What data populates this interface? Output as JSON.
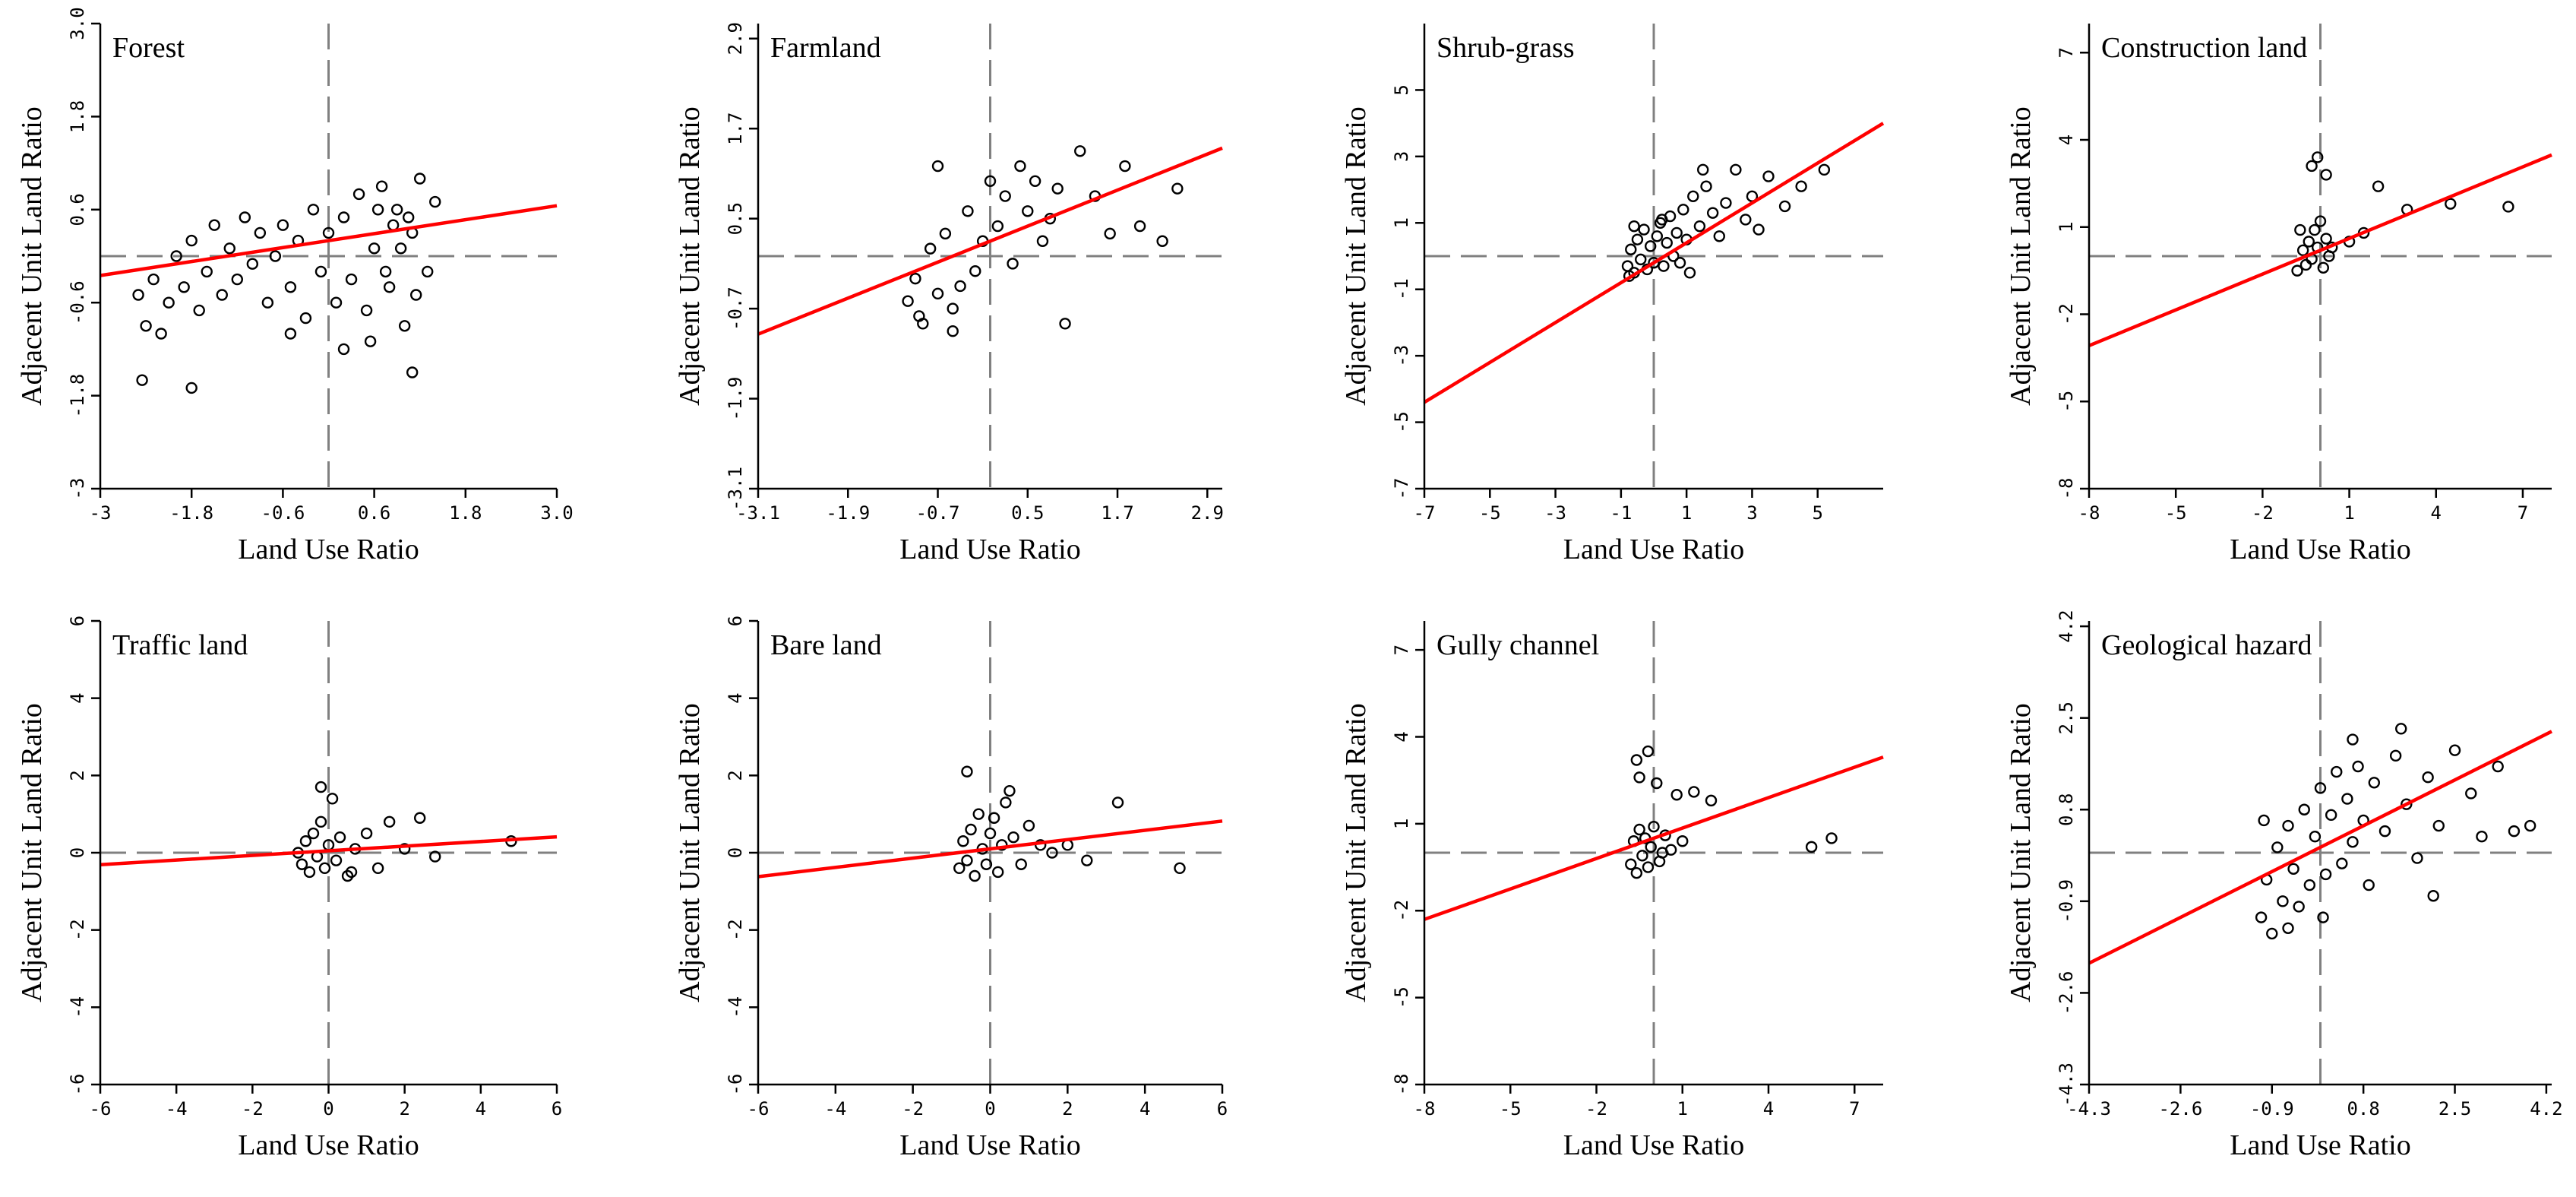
{
  "figure": {
    "colors": {
      "regression": "#ff0000",
      "axis": "#000000",
      "dash": "#808080",
      "point": "#000000",
      "background": "#ffffff"
    }
  },
  "chart_data": [
    {
      "type": "scatter",
      "title": "Forest",
      "xlabel": "Land Use Ratio",
      "ylabel": "Adjacent Unit Land Ratio",
      "xlim": [
        -3,
        3
      ],
      "ylim": [
        -3,
        3
      ],
      "xticks": [
        -3,
        -1.8,
        -0.6,
        0.6,
        1.8,
        3
      ],
      "xtick_labels": [
        "-3",
        "-1.8",
        "-0.6",
        "0.6",
        "1.8",
        "3.0"
      ],
      "yticks": [
        -3,
        -1.8,
        -0.6,
        0.6,
        1.8,
        3
      ],
      "ytick_labels": [
        "-3",
        "-1.8",
        "-0.6",
        "0.6",
        "1.8",
        "3.0"
      ],
      "regression": {
        "slope": 0.15,
        "intercept": 0.2
      },
      "points": [
        [
          -2.5,
          -0.5
        ],
        [
          -2.4,
          -0.9
        ],
        [
          -2.3,
          -0.3
        ],
        [
          -2.2,
          -1.0
        ],
        [
          -2.1,
          -0.6
        ],
        [
          -2.0,
          0.0
        ],
        [
          -1.9,
          -0.4
        ],
        [
          -1.8,
          0.2
        ],
        [
          -1.7,
          -0.7
        ],
        [
          -1.6,
          -0.2
        ],
        [
          -1.5,
          0.4
        ],
        [
          -1.4,
          -0.5
        ],
        [
          -1.3,
          0.1
        ],
        [
          -1.2,
          -0.3
        ],
        [
          -1.1,
          0.5
        ],
        [
          -1.0,
          -0.1
        ],
        [
          -0.9,
          0.3
        ],
        [
          -0.8,
          -0.6
        ],
        [
          -0.7,
          0.0
        ],
        [
          -0.6,
          0.4
        ],
        [
          -0.5,
          -0.4
        ],
        [
          -0.4,
          0.2
        ],
        [
          -0.3,
          -0.8
        ],
        [
          -0.2,
          0.6
        ],
        [
          -0.1,
          -0.2
        ],
        [
          0.0,
          0.3
        ],
        [
          0.1,
          -0.6
        ],
        [
          0.2,
          0.5
        ],
        [
          0.3,
          -0.3
        ],
        [
          0.4,
          0.8
        ],
        [
          0.5,
          -0.7
        ],
        [
          0.6,
          0.1
        ],
        [
          0.7,
          0.9
        ],
        [
          0.8,
          -0.4
        ],
        [
          0.9,
          0.6
        ],
        [
          1.0,
          -0.9
        ],
        [
          1.1,
          0.3
        ],
        [
          1.2,
          1.0
        ],
        [
          1.3,
          -0.2
        ],
        [
          1.4,
          0.7
        ],
        [
          0.75,
          -0.2
        ],
        [
          0.85,
          0.4
        ],
        [
          0.95,
          0.1
        ],
        [
          1.05,
          0.5
        ],
        [
          1.15,
          -0.5
        ],
        [
          0.65,
          0.6
        ],
        [
          -2.45,
          -1.6
        ],
        [
          -1.8,
          -1.7
        ],
        [
          0.2,
          -1.2
        ],
        [
          1.1,
          -1.5
        ],
        [
          -0.5,
          -1.0
        ],
        [
          0.55,
          -1.1
        ]
      ]
    },
    {
      "type": "scatter",
      "title": "Farmland",
      "xlabel": "Land Use Ratio",
      "ylabel": "Adjacent Unit Land Ratio",
      "xlim": [
        -3.1,
        3.1
      ],
      "ylim": [
        -3.1,
        3.1
      ],
      "xticks": [
        -3.1,
        -1.9,
        -0.7,
        0.5,
        1.7,
        2.9
      ],
      "xtick_labels": [
        "-3.1",
        "-1.9",
        "-0.7",
        "0.5",
        "1.7",
        "2.9"
      ],
      "yticks": [
        -3.1,
        -1.9,
        -0.7,
        0.5,
        1.7,
        2.9
      ],
      "ytick_labels": [
        "-3.1",
        "-1.9",
        "-0.7",
        "0.5",
        "1.7",
        "2.9"
      ],
      "regression": {
        "slope": 0.4,
        "intercept": 0.2
      },
      "points": [
        [
          -1.1,
          -0.6
        ],
        [
          -1.0,
          -0.3
        ],
        [
          -0.9,
          -0.9
        ],
        [
          -0.8,
          0.1
        ],
        [
          -0.7,
          -0.5
        ],
        [
          -0.6,
          0.3
        ],
        [
          -0.5,
          -0.7
        ],
        [
          -0.4,
          -0.4
        ],
        [
          -0.3,
          0.6
        ],
        [
          -0.2,
          -0.2
        ],
        [
          -0.1,
          0.2
        ],
        [
          0.0,
          1.0
        ],
        [
          0.1,
          0.4
        ],
        [
          0.2,
          0.8
        ],
        [
          0.3,
          -0.1
        ],
        [
          0.4,
          1.2
        ],
        [
          0.5,
          0.6
        ],
        [
          0.6,
          1.0
        ],
        [
          0.7,
          0.2
        ],
        [
          0.8,
          0.5
        ],
        [
          1.0,
          -0.9
        ],
        [
          1.2,
          1.4
        ],
        [
          1.4,
          0.8
        ],
        [
          1.6,
          0.3
        ],
        [
          1.8,
          1.2
        ],
        [
          2.0,
          0.4
        ],
        [
          2.3,
          0.2
        ],
        [
          2.5,
          0.9
        ],
        [
          -0.7,
          1.2
        ],
        [
          -0.95,
          -0.8
        ],
        [
          -0.5,
          -1.0
        ],
        [
          0.9,
          0.9
        ]
      ]
    },
    {
      "type": "scatter",
      "title": "Shrub-grass",
      "xlabel": "Land Use Ratio",
      "ylabel": "Adjacent Unit Land Ratio",
      "xlim": [
        -7,
        7
      ],
      "ylim": [
        -7,
        7
      ],
      "xticks": [
        -7,
        -5,
        -3,
        -1,
        1,
        3,
        5
      ],
      "xtick_labels": [
        "-7",
        "-5",
        "-3",
        "-1",
        "1",
        "3",
        "5"
      ],
      "yticks": [
        -7,
        -5,
        -3,
        -1,
        1,
        3,
        5
      ],
      "ytick_labels": [
        "-7",
        "-5",
        "-3",
        "-1",
        "1",
        "3",
        "5"
      ],
      "regression": {
        "slope": 0.6,
        "intercept": -0.2
      },
      "points": [
        [
          -0.8,
          -0.3
        ],
        [
          -0.7,
          0.2
        ],
        [
          -0.6,
          -0.5
        ],
        [
          -0.5,
          0.5
        ],
        [
          -0.4,
          -0.1
        ],
        [
          -0.3,
          0.8
        ],
        [
          -0.2,
          -0.4
        ],
        [
          -0.1,
          0.3
        ],
        [
          0.0,
          -0.2
        ],
        [
          0.1,
          0.6
        ],
        [
          0.2,
          1.0
        ],
        [
          0.3,
          -0.3
        ],
        [
          0.4,
          0.4
        ],
        [
          0.5,
          1.2
        ],
        [
          0.6,
          0.0
        ],
        [
          0.7,
          0.7
        ],
        [
          0.8,
          -0.2
        ],
        [
          0.9,
          1.4
        ],
        [
          1.0,
          0.5
        ],
        [
          1.2,
          1.8
        ],
        [
          1.4,
          0.9
        ],
        [
          1.6,
          2.1
        ],
        [
          1.8,
          1.3
        ],
        [
          2.0,
          0.6
        ],
        [
          2.2,
          1.6
        ],
        [
          2.5,
          2.6
        ],
        [
          2.8,
          1.1
        ],
        [
          3.0,
          1.8
        ],
        [
          3.2,
          0.8
        ],
        [
          3.5,
          2.4
        ],
        [
          4.0,
          1.5
        ],
        [
          4.5,
          2.1
        ],
        [
          5.2,
          2.6
        ],
        [
          -0.6,
          0.9
        ],
        [
          -0.75,
          -0.6
        ],
        [
          0.25,
          1.1
        ],
        [
          1.1,
          -0.5
        ],
        [
          1.5,
          2.6
        ]
      ]
    },
    {
      "type": "scatter",
      "title": "Construction land",
      "xlabel": "Land Use Ratio",
      "ylabel": "Adjacent Unit Land Ratio",
      "xlim": [
        -8,
        8
      ],
      "ylim": [
        -8,
        8
      ],
      "xticks": [
        -8,
        -5,
        -2,
        1,
        4,
        7
      ],
      "xtick_labels": [
        "-8",
        "-5",
        "-2",
        "1",
        "4",
        "7"
      ],
      "yticks": [
        -8,
        -5,
        -2,
        1,
        4,
        7
      ],
      "ytick_labels": [
        "-8",
        "-5",
        "-2",
        "1",
        "4",
        "7"
      ],
      "regression": {
        "slope": 0.41,
        "intercept": 0.2
      },
      "points": [
        [
          -0.8,
          -0.5
        ],
        [
          -0.6,
          0.2
        ],
        [
          -0.5,
          -0.3
        ],
        [
          -0.4,
          0.5
        ],
        [
          -0.3,
          -0.1
        ],
        [
          -0.2,
          0.9
        ],
        [
          -0.1,
          0.3
        ],
        [
          0.0,
          1.2
        ],
        [
          0.1,
          -0.4
        ],
        [
          0.2,
          0.6
        ],
        [
          0.3,
          0.0
        ],
        [
          -0.3,
          3.1
        ],
        [
          -0.1,
          3.4
        ],
        [
          0.2,
          2.8
        ],
        [
          1.0,
          0.5
        ],
        [
          1.5,
          0.8
        ],
        [
          2.0,
          2.4
        ],
        [
          3.0,
          1.6
        ],
        [
          4.5,
          1.8
        ],
        [
          6.5,
          1.7
        ],
        [
          -0.7,
          0.9
        ],
        [
          0.4,
          0.3
        ]
      ]
    },
    {
      "type": "scatter",
      "title": "Traffic land",
      "xlabel": "Land Use Ratio",
      "ylabel": "Adjacent Unit Land Ratio",
      "xlim": [
        -6,
        6
      ],
      "ylim": [
        -6,
        6
      ],
      "xticks": [
        -6,
        -4,
        -2,
        0,
        2,
        4,
        6
      ],
      "xtick_labels": [
        "-6",
        "-4",
        "-2",
        "0",
        "2",
        "4",
        "6"
      ],
      "yticks": [
        -6,
        -4,
        -2,
        0,
        2,
        4,
        6
      ],
      "ytick_labels": [
        "-6",
        "-4",
        "-2",
        "0",
        "2",
        "4",
        "6"
      ],
      "regression": {
        "slope": 0.06,
        "intercept": 0.05
      },
      "points": [
        [
          -0.8,
          0.0
        ],
        [
          -0.7,
          -0.3
        ],
        [
          -0.6,
          0.3
        ],
        [
          -0.5,
          -0.5
        ],
        [
          -0.4,
          0.5
        ],
        [
          -0.3,
          -0.1
        ],
        [
          -0.2,
          0.8
        ],
        [
          -0.1,
          -0.4
        ],
        [
          0.0,
          0.2
        ],
        [
          0.1,
          1.4
        ],
        [
          0.2,
          -0.2
        ],
        [
          0.3,
          0.4
        ],
        [
          0.5,
          -0.6
        ],
        [
          0.7,
          0.1
        ],
        [
          1.0,
          0.5
        ],
        [
          1.3,
          -0.4
        ],
        [
          1.6,
          0.8
        ],
        [
          2.0,
          0.1
        ],
        [
          2.4,
          0.9
        ],
        [
          2.8,
          -0.1
        ],
        [
          4.8,
          0.3
        ],
        [
          -0.2,
          1.7
        ],
        [
          0.6,
          -0.5
        ]
      ]
    },
    {
      "type": "scatter",
      "title": "Bare land",
      "xlabel": "Land Use Ratio",
      "ylabel": "Adjacent Unit Land Ratio",
      "xlim": [
        -6,
        6
      ],
      "ylim": [
        -6,
        6
      ],
      "xticks": [
        -6,
        -4,
        -2,
        0,
        2,
        4,
        6
      ],
      "xtick_labels": [
        "-6",
        "-4",
        "-2",
        "0",
        "2",
        "4",
        "6"
      ],
      "yticks": [
        -6,
        -4,
        -2,
        0,
        2,
        4,
        6
      ],
      "ytick_labels": [
        "-6",
        "-4",
        "-2",
        "0",
        "2",
        "4",
        "6"
      ],
      "regression": {
        "slope": 0.12,
        "intercept": 0.1
      },
      "points": [
        [
          -0.8,
          -0.4
        ],
        [
          -0.7,
          0.3
        ],
        [
          -0.6,
          -0.2
        ],
        [
          -0.5,
          0.6
        ],
        [
          -0.4,
          -0.6
        ],
        [
          -0.3,
          1.0
        ],
        [
          -0.2,
          0.1
        ],
        [
          -0.1,
          -0.3
        ],
        [
          0.0,
          0.5
        ],
        [
          0.1,
          0.9
        ],
        [
          0.2,
          -0.5
        ],
        [
          0.3,
          0.2
        ],
        [
          0.4,
          1.3
        ],
        [
          0.6,
          0.4
        ],
        [
          0.8,
          -0.3
        ],
        [
          1.0,
          0.7
        ],
        [
          1.3,
          0.2
        ],
        [
          1.6,
          0.0
        ],
        [
          2.0,
          0.2
        ],
        [
          2.5,
          -0.2
        ],
        [
          3.3,
          1.3
        ],
        [
          4.9,
          -0.4
        ],
        [
          -0.6,
          2.1
        ],
        [
          0.5,
          1.6
        ]
      ]
    },
    {
      "type": "scatter",
      "title": "Gully channel",
      "xlabel": "Land Use Ratio",
      "ylabel": "Adjacent Unit Land Ratio",
      "xlim": [
        -8,
        8
      ],
      "ylim": [
        -8,
        8
      ],
      "xticks": [
        -8,
        -5,
        -2,
        1,
        4,
        7
      ],
      "xtick_labels": [
        "-8",
        "-5",
        "-2",
        "1",
        "4",
        "7"
      ],
      "yticks": [
        -8,
        -5,
        -2,
        1,
        4,
        7
      ],
      "ytick_labels": [
        "-8",
        "-5",
        "-2",
        "1",
        "4",
        "7"
      ],
      "regression": {
        "slope": 0.35,
        "intercept": 0.5
      },
      "points": [
        [
          -0.8,
          -0.4
        ],
        [
          -0.7,
          0.4
        ],
        [
          -0.6,
          -0.7
        ],
        [
          -0.5,
          0.8
        ],
        [
          -0.4,
          -0.1
        ],
        [
          -0.3,
          0.5
        ],
        [
          -0.2,
          -0.5
        ],
        [
          -0.1,
          0.2
        ],
        [
          0.0,
          0.9
        ],
        [
          0.2,
          -0.3
        ],
        [
          0.4,
          0.6
        ],
        [
          0.6,
          0.1
        ],
        [
          1.0,
          0.4
        ],
        [
          -0.6,
          3.2
        ],
        [
          -0.2,
          3.5
        ],
        [
          0.1,
          2.4
        ],
        [
          0.8,
          2.0
        ],
        [
          1.4,
          2.1
        ],
        [
          2.0,
          1.8
        ],
        [
          5.5,
          0.2
        ],
        [
          6.2,
          0.5
        ],
        [
          -0.5,
          2.6
        ],
        [
          0.3,
          0.0
        ]
      ]
    },
    {
      "type": "scatter",
      "title": "Geological hazard",
      "xlabel": "Land Use Ratio",
      "ylabel": "Adjacent Unit Land Ratio",
      "xlim": [
        -4.3,
        4.3
      ],
      "ylim": [
        -4.3,
        4.3
      ],
      "xticks": [
        -4.3,
        -2.6,
        -0.9,
        0.8,
        2.5,
        4.2
      ],
      "xtick_labels": [
        "-4.3",
        "-2.6",
        "-0.9",
        "0.8",
        "2.5",
        "4.2"
      ],
      "yticks": [
        -4.3,
        -2.6,
        -0.9,
        0.8,
        2.5,
        4.2
      ],
      "ytick_labels": [
        "-4.3",
        "-2.6",
        "-0.9",
        "0.8",
        "2.5",
        "4.2"
      ],
      "regression": {
        "slope": 0.5,
        "intercept": 0.1
      },
      "points": [
        [
          -1.1,
          -1.2
        ],
        [
          -1.0,
          -0.5
        ],
        [
          -0.9,
          -1.5
        ],
        [
          -0.8,
          0.1
        ],
        [
          -0.7,
          -0.9
        ],
        [
          -0.6,
          0.5
        ],
        [
          -0.5,
          -0.3
        ],
        [
          -0.4,
          -1.0
        ],
        [
          -0.3,
          0.8
        ],
        [
          -0.2,
          -0.6
        ],
        [
          -0.1,
          0.3
        ],
        [
          0.0,
          1.2
        ],
        [
          0.1,
          -0.4
        ],
        [
          0.2,
          0.7
        ],
        [
          0.3,
          1.5
        ],
        [
          0.4,
          -0.2
        ],
        [
          0.5,
          1.0
        ],
        [
          0.6,
          0.2
        ],
        [
          0.7,
          1.6
        ],
        [
          0.8,
          0.6
        ],
        [
          0.9,
          -0.6
        ],
        [
          1.0,
          1.3
        ],
        [
          1.2,
          0.4
        ],
        [
          1.4,
          1.8
        ],
        [
          1.6,
          0.9
        ],
        [
          1.8,
          -0.1
        ],
        [
          2.0,
          1.4
        ],
        [
          2.2,
          0.5
        ],
        [
          2.5,
          1.9
        ],
        [
          2.8,
          1.1
        ],
        [
          3.0,
          0.3
        ],
        [
          3.3,
          1.6
        ],
        [
          3.6,
          0.4
        ],
        [
          3.9,
          0.5
        ],
        [
          -1.05,
          0.6
        ],
        [
          0.05,
          -1.2
        ],
        [
          0.6,
          2.1
        ],
        [
          2.1,
          -0.8
        ],
        [
          1.5,
          2.3
        ],
        [
          -0.6,
          -1.4
        ]
      ]
    }
  ]
}
